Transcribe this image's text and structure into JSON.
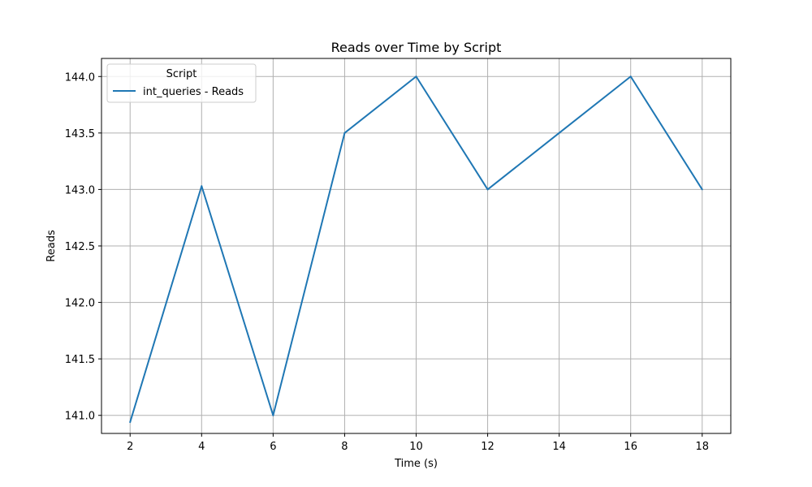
{
  "chart_data": {
    "type": "line",
    "title": "Reads over Time by Script",
    "xlabel": "Time (s)",
    "ylabel": "Reads",
    "xlim": [
      1.2,
      18.8
    ],
    "ylim": [
      140.84,
      144.16
    ],
    "xticks": [
      2,
      4,
      6,
      8,
      10,
      12,
      14,
      16,
      18
    ],
    "yticks": [
      141.0,
      141.5,
      142.0,
      142.5,
      143.0,
      143.5,
      144.0
    ],
    "ytick_labels": [
      "141.0",
      "141.5",
      "142.0",
      "142.5",
      "143.0",
      "143.5",
      "144.0"
    ],
    "grid": true,
    "legend": {
      "title": "Script",
      "position": "upper-left"
    },
    "series": [
      {
        "name": "int_queries - Reads",
        "color": "#1f77b4",
        "x": [
          2,
          4,
          6,
          8,
          10,
          12,
          14,
          16,
          18
        ],
        "y": [
          140.94,
          143.03,
          141.0,
          143.5,
          144.0,
          143.0,
          143.5,
          144.0,
          143.0
        ]
      }
    ]
  }
}
